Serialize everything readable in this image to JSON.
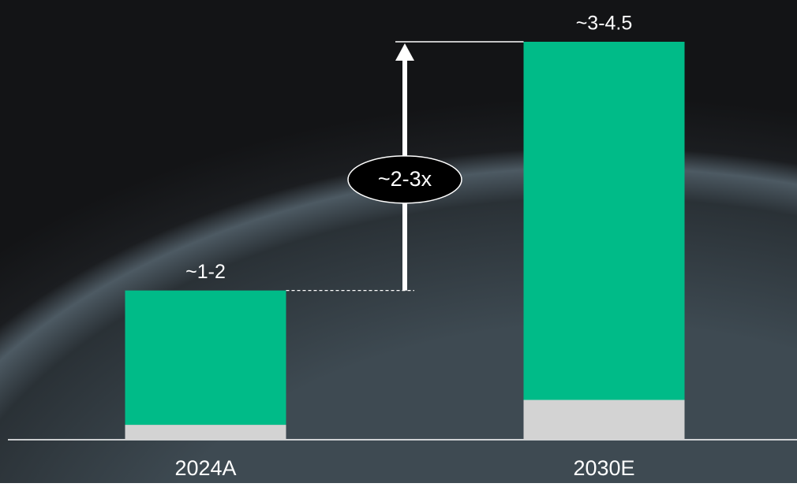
{
  "chart_data": {
    "type": "stacked_bar",
    "categories": [
      "2024A",
      "2030E"
    ],
    "series": [
      {
        "color": "#d3d3d3",
        "values": [
          0.15,
          0.4
        ]
      },
      {
        "color": "#00bb88",
        "values": [
          1.35,
          3.6
        ]
      }
    ],
    "total_labels": [
      "~1-2",
      "~3-4.5"
    ],
    "growth_label": "~2-3x"
  }
}
